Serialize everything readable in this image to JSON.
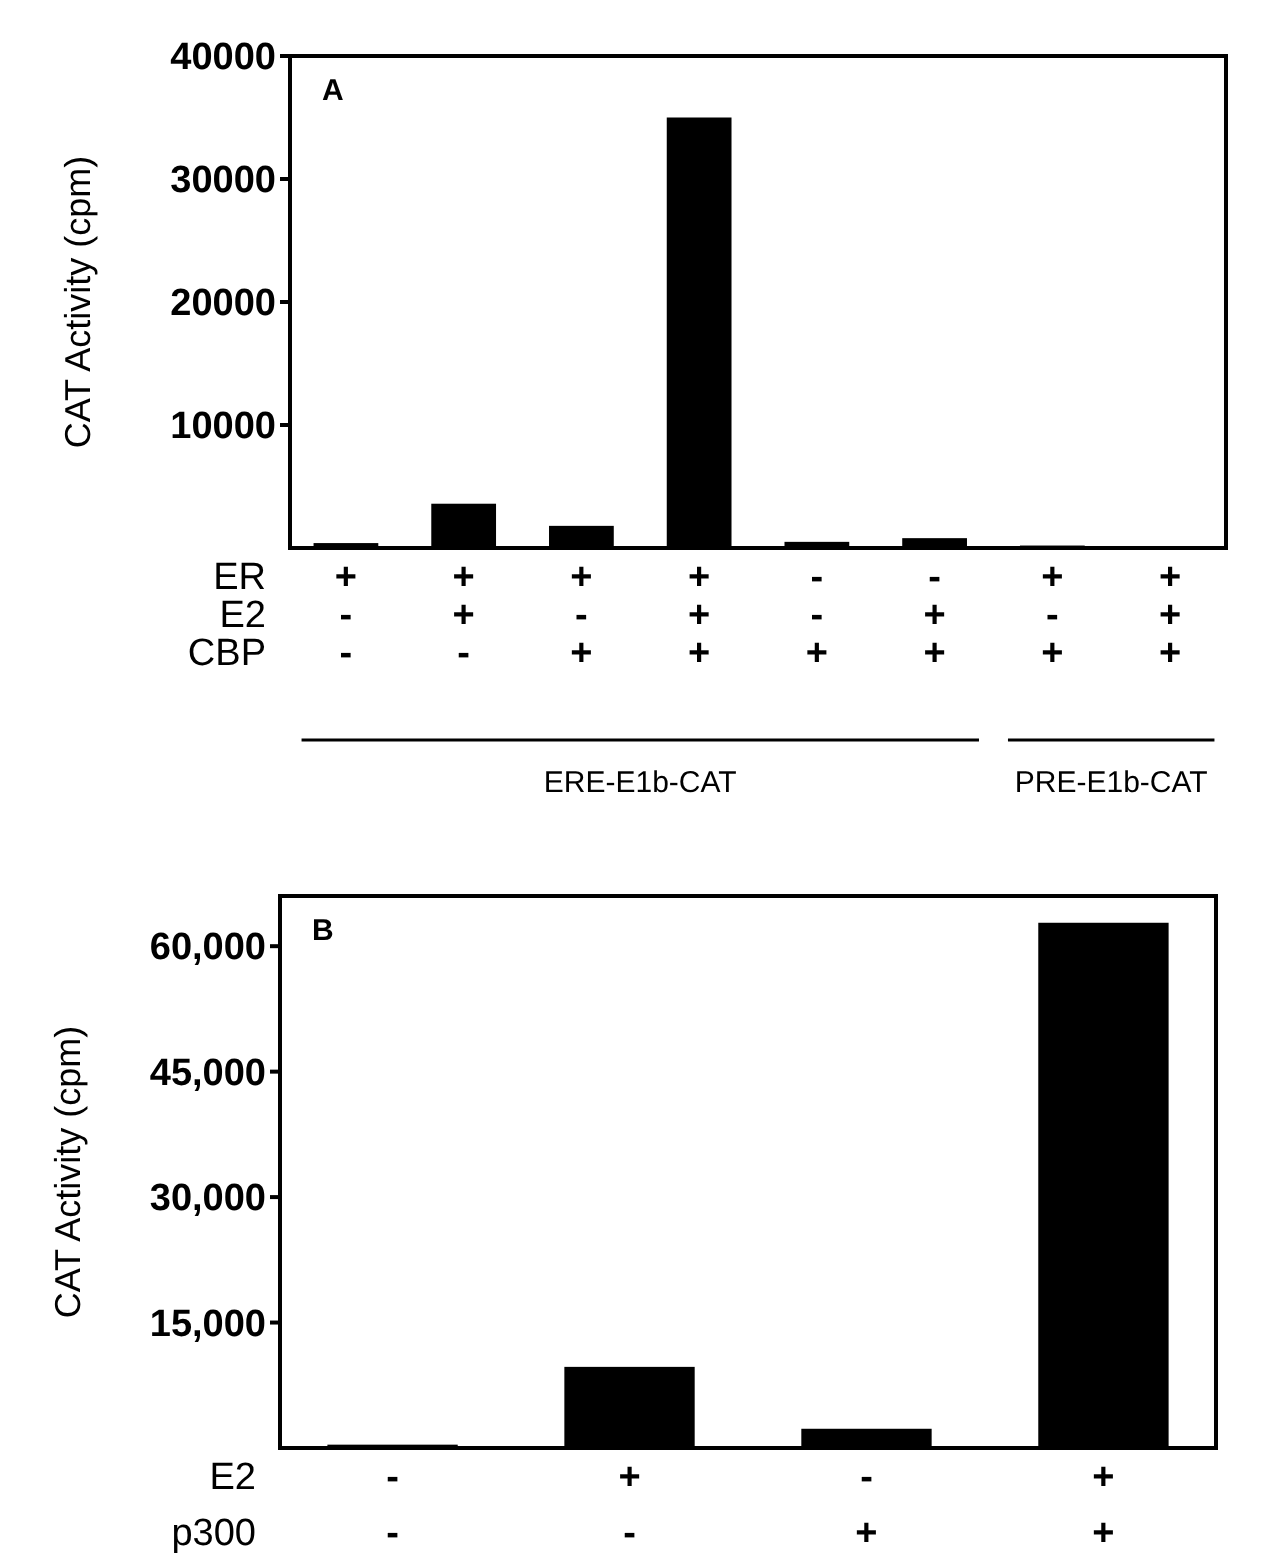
{
  "chart_data": [
    {
      "type": "bar",
      "title": "A",
      "ylabel": "CAT Activity (cpm)",
      "categories": [
        "+\n-\n-",
        "+\n+\n-",
        "+\n-\n+",
        "+\n+\n+",
        "-\n-\n+",
        "-\n+\n+",
        "+\n-\n+",
        "+\n+\n+"
      ],
      "values": [
        400,
        3600,
        1800,
        35000,
        500,
        800,
        200,
        150
      ],
      "color": "#000000",
      "ylim": [
        0,
        40000
      ],
      "yticks": [
        10000,
        20000,
        30000,
        40000
      ],
      "annotations": [
        "ER\nE2\nCBP",
        "ERE-E1b-CAT",
        "PRE-E1b-CAT"
      ]
    },
    {
      "type": "bar",
      "title": "B",
      "ylabel": "CAT Activity (cpm)",
      "categories": [
        "-\n-",
        "+\n-",
        "-\n+",
        "+\n+"
      ],
      "values": [
        400,
        9700,
        2300,
        62800
      ],
      "color": "#000000",
      "ylim": [
        0,
        66000
      ],
      "yticks": [
        {
          "value": 15000,
          "label": "15,000"
        },
        {
          "value": 30000,
          "label": "30,000"
        },
        {
          "value": 45000,
          "label": "45,000"
        },
        {
          "value": 60000,
          "label": "60,000"
        }
      ],
      "annotations": [
        "E2\np300"
      ]
    }
  ]
}
